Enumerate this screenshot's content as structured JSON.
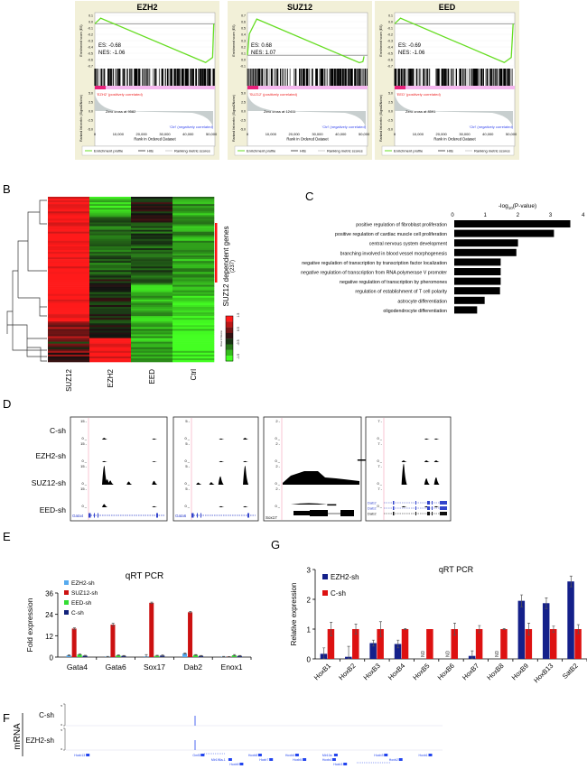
{
  "panel_labels": {
    "a": "A",
    "b": "B",
    "c": "C",
    "d": "D",
    "e": "E",
    "f": "F",
    "g": "G"
  },
  "chart_data": [
    {
      "id": "A",
      "type": "line",
      "subtype": "gsea",
      "y_axis_label": "Enrichment score (ES)",
      "metric_axis_label": "Ranked list metric (Signal2Noise)",
      "x_axis_label": "Rank in Ordered Dataset",
      "legend": [
        "Enrichment profile",
        "Hits",
        "Ranking metric scores"
      ],
      "colors": {
        "profile": "#66dd22",
        "background": "#f2f0d8",
        "pos": "#ee2222",
        "neg": "#3344ee"
      },
      "panels": [
        {
          "title": "EZH2",
          "es_label": "ES: -0.68",
          "nes_label": "NES:  -1.06",
          "es_ticks": [
            "0.1",
            "0.0",
            "-0.1",
            "-0.2",
            "-0.3",
            "-0.4",
            "-0.5",
            "-0.6",
            "-0.7"
          ],
          "ylim": [
            -0.75,
            0.15
          ],
          "x_ticks": [
            "0",
            "10,000",
            "20,000",
            "30,000",
            "40,000",
            "50,000"
          ],
          "metric_ticks": [
            "5.0",
            "2.5",
            "0.0",
            "-2.5",
            "-5.0"
          ],
          "pos_label": "'EZH2' (positively correlated)",
          "zero_cross": "Zero cross at 9582",
          "neg_label": "'Ctrl' (negatively correlated)",
          "curve": [
            [
              0,
              0
            ],
            [
              2500,
              0.1
            ],
            [
              47500,
              -0.69
            ],
            [
              50500,
              -0.6
            ],
            [
              51000,
              0
            ]
          ]
        },
        {
          "title": "SUZ12",
          "es_label": "ES: 0.68",
          "nes_label": "NES: 1.07",
          "es_ticks": [
            "0.7",
            "0.6",
            "0.5",
            "0.4",
            "0.3",
            "0.2",
            "0.1",
            "0.0",
            "-0.1"
          ],
          "ylim": [
            -0.2,
            0.75
          ],
          "x_ticks": [
            "0",
            "10,000",
            "20,000",
            "30,000",
            "40,000",
            "50,000"
          ],
          "metric_ticks": [
            "5.0",
            "2.5",
            "0.0",
            "-2.5",
            "-5.0"
          ],
          "pos_label": "'SUZ12' (positively correlated)",
          "zero_cross": "Zero cross at 12411",
          "neg_label": "'Ctrl' (negatively correlated)",
          "curve": [
            [
              0,
              0
            ],
            [
              800,
              0.4
            ],
            [
              4000,
              0.68
            ],
            [
              48000,
              -0.14
            ],
            [
              49500,
              -0.12
            ],
            [
              50000,
              -0.02
            ]
          ]
        },
        {
          "title": "EED",
          "es_label": "ES: -0.69",
          "nes_label": "NES: -1.06",
          "es_ticks": [
            "0.1",
            "0.0",
            "-0.1",
            "-0.2",
            "-0.3",
            "-0.4",
            "-0.5",
            "-0.6",
            "-0.7"
          ],
          "ylim": [
            -0.75,
            0.15
          ],
          "x_ticks": [
            "0",
            "10,000",
            "20,000",
            "30,000",
            "40,000",
            "50,000"
          ],
          "metric_ticks": [
            "5.0",
            "2.5",
            "0.0",
            "-2.5",
            "-5.0"
          ],
          "pos_label": "'EED' (positively correlated)",
          "zero_cross": "Zero cross at 8591",
          "neg_label": "'Ctrl' (negatively correlated)",
          "curve": [
            [
              0,
              0
            ],
            [
              2500,
              0.1
            ],
            [
              47000,
              -0.69
            ],
            [
              50000,
              -0.6
            ],
            [
              50800,
              0
            ]
          ]
        }
      ]
    },
    {
      "id": "B",
      "type": "heatmap",
      "columns": [
        "SUZ12",
        "EZH2",
        "EED",
        "Ctrl"
      ],
      "bracket_label": "SUZ12 dependent genes",
      "bracket_count": "(237)",
      "colorbar_title": "Row Z-Score",
      "colorbar_ticks": [
        "-1.5",
        "-0.5",
        "0.5",
        "1.5"
      ],
      "colorbar_range": [
        -1.5,
        1.5
      ],
      "colors": {
        "high": "#ff1a1a",
        "mid": "#111111",
        "low": "#44ff22"
      }
    },
    {
      "id": "C",
      "type": "bar",
      "orientation": "horizontal",
      "xlabel_prefix": "-log",
      "xlabel_sub": "10",
      "xlabel_suffix": "(P-value)",
      "xlim": [
        0,
        4
      ],
      "x_ticks": [
        "0",
        "1",
        "2",
        "3",
        "4"
      ],
      "categories": [
        "positive regulation of fibroblast proliferation",
        "positive regulation of cardiac muscle cell proliferation",
        "central nervous system development",
        "branching involved in blood vessel morphogenesis",
        "negative regulation of transcription by transcription factor localization",
        "negative regulation of transcription from RNA polymerase V promoter",
        "negative regulation of transcription by pheromones",
        "regulation of establishment of T cell polarity",
        "astrocyte differentiation",
        "oligodendrocyte differentiation"
      ],
      "values": [
        3.55,
        3.05,
        1.95,
        1.9,
        1.42,
        1.42,
        1.42,
        1.4,
        0.93,
        0.7
      ]
    },
    {
      "id": "D",
      "type": "genome-tracks",
      "rows": [
        "C-sh",
        "EZH2-sh",
        "SUZ12-sh",
        "EED-sh"
      ],
      "loci": [
        {
          "gene": "Gata4",
          "scale_top": "15 -",
          "scale_zero": "0 _"
        },
        {
          "gene": "Gata6",
          "scale_top": "5 -",
          "scale_zero": "0 _"
        },
        {
          "gene": "Sox17",
          "scale_top": "2 -",
          "scale_zero": "0 _"
        },
        {
          "gene": "Dab2",
          "scale_top": "7 -",
          "scale_zero": "0 _"
        }
      ],
      "dab2_isoforms": [
        "Dab2",
        "Dab2",
        "Dab2"
      ]
    },
    {
      "id": "E",
      "type": "bar",
      "title": "qRT PCR",
      "ylabel": "Fold expression",
      "ylim": [
        0,
        36
      ],
      "y_ticks": [
        "0",
        "12",
        "24",
        "36"
      ],
      "categories": [
        "Gata4",
        "Gata6",
        "Sox17",
        "Dab2",
        "Enox1"
      ],
      "series": [
        {
          "name": "EZH2-sh",
          "color": "#55aaee",
          "values": [
            1.0,
            0.3,
            0.4,
            2.0,
            0.3
          ],
          "errors": [
            0.3,
            0.1,
            1.0,
            0.3,
            0.1
          ]
        },
        {
          "name": "SUZ12-sh",
          "color": "#cc1111",
          "values": [
            16.0,
            18.2,
            30.5,
            25.2,
            0.2
          ],
          "errors": [
            0.4,
            0.8,
            0.4,
            0.4,
            0.1
          ]
        },
        {
          "name": "EED-sh",
          "color": "#33dd33",
          "values": [
            1.5,
            1.0,
            0.8,
            1.2,
            1.0
          ],
          "errors": [
            0.2,
            0.2,
            0.2,
            0.2,
            0.4
          ]
        },
        {
          "name": "C-sh",
          "color": "#11227a",
          "values": [
            0.8,
            0.7,
            0.9,
            0.7,
            0.7
          ],
          "errors": [
            0.2,
            0.2,
            0.4,
            0.2,
            0.2
          ]
        }
      ]
    },
    {
      "id": "G",
      "type": "bar",
      "title": "qRT PCR",
      "ylabel": "Relative expression",
      "ylim": [
        0,
        3
      ],
      "y_ticks": [
        "0",
        "1",
        "2",
        "3"
      ],
      "categories": [
        "HoxB1",
        "HoxB2",
        "HoxB3",
        "HoxB4",
        "HoxB5",
        "HoxB6",
        "HoxB7",
        "HoxB8",
        "HoxB9",
        "HoxB13",
        "SatB2"
      ],
      "nd_label": "ND",
      "series": [
        {
          "name": "EZH2-sh",
          "color": "#14208a",
          "values": [
            0.17,
            0.07,
            0.53,
            0.5,
            null,
            null,
            0.1,
            null,
            1.95,
            1.87,
            2.6
          ],
          "errors": [
            0.2,
            0.35,
            0.1,
            0.13,
            null,
            null,
            0.17,
            null,
            0.2,
            0.18,
            0.18
          ]
        },
        {
          "name": "C-sh",
          "color": "#dd1111",
          "values": [
            1,
            1,
            1,
            1,
            1,
            1,
            1,
            1,
            1,
            1,
            1
          ],
          "errors": [
            0.23,
            0.17,
            0.25,
            0.02,
            0.0,
            0.2,
            0.12,
            0.02,
            0.2,
            0.1,
            0.15
          ]
        }
      ]
    },
    {
      "id": "F",
      "type": "genome-tracks",
      "side_label": "mRNA",
      "rows": [
        "C-sh",
        "EZH2-sh"
      ],
      "scale_top": "5",
      "scale_zero": "0",
      "genes": [
        {
          "name": "Hoxb13",
          "pos": 0.02,
          "lane": 0
        },
        {
          "name": "Gm53",
          "pos": 0.34,
          "lane": 0
        },
        {
          "name": "Mir196a-1",
          "pos": 0.39,
          "lane": 1
        },
        {
          "name": "Hoxb9",
          "pos": 0.44,
          "lane": 2
        },
        {
          "name": "Hoxb8",
          "pos": 0.49,
          "lane": 0
        },
        {
          "name": "Hoxb7",
          "pos": 0.52,
          "lane": 1
        },
        {
          "name": "Hoxb6",
          "pos": 0.59,
          "lane": 0
        },
        {
          "name": "Hoxb5",
          "pos": 0.61,
          "lane": 1
        },
        {
          "name": "Mir10a",
          "pos": 0.69,
          "lane": 0
        },
        {
          "name": "Hoxb4",
          "pos": 0.69,
          "lane": 1
        },
        {
          "name": "Hoxb3",
          "pos": 0.72,
          "lane": 2
        },
        {
          "name": "Hoxb3",
          "pos": 0.83,
          "lane": 0
        },
        {
          "name": "Hoxb2",
          "pos": 0.87,
          "lane": 1
        },
        {
          "name": "Hoxb1",
          "pos": 0.95,
          "lane": 0
        }
      ]
    }
  ]
}
